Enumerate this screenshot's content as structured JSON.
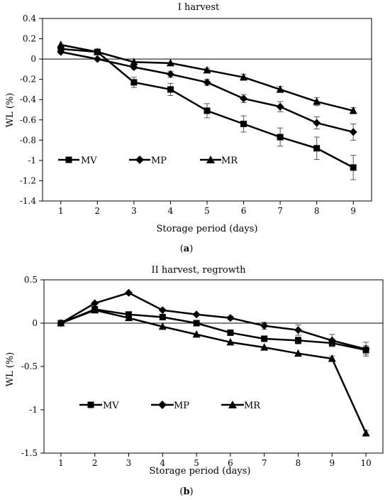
{
  "chart_data": [
    {
      "type": "line",
      "title": "I harvest",
      "xlabel": "Storage period (days)",
      "ylabel": "WL (%)",
      "caption_pre": "(",
      "caption_letter": "a",
      "caption_post": ")",
      "x": [
        1,
        2,
        3,
        4,
        5,
        6,
        7,
        8,
        9
      ],
      "xlim": [
        0.5,
        9.5
      ],
      "ylim": [
        -1.4,
        0.4
      ],
      "yticks": [
        0.4,
        0.2,
        0,
        -0.2,
        -0.4,
        -0.6,
        -0.8,
        -1,
        -1.2,
        -1.4
      ],
      "yticks_text": [
        "0.4",
        "0.2",
        "0",
        "-0.2",
        "-0.4",
        "-0.6",
        "-0.8",
        "-1",
        "-1.2",
        "-1.4"
      ],
      "grid": false,
      "legend_position": "lower-left",
      "series": [
        {
          "name": "MV",
          "marker": "square",
          "values": [
            0.1,
            0.07,
            -0.23,
            -0.3,
            -0.51,
            -0.64,
            -0.77,
            -0.88,
            -1.07
          ],
          "errors": [
            0.0,
            0.0,
            0.05,
            0.06,
            0.07,
            0.08,
            0.09,
            0.11,
            0.12
          ]
        },
        {
          "name": "MP",
          "marker": "diamond",
          "values": [
            0.07,
            0.0,
            -0.08,
            -0.15,
            -0.23,
            -0.39,
            -0.47,
            -0.63,
            -0.72
          ],
          "errors": [
            0.0,
            0.0,
            0.02,
            0.03,
            0.03,
            0.04,
            0.05,
            0.06,
            0.08
          ]
        },
        {
          "name": "MR",
          "marker": "triangle",
          "values": [
            0.14,
            0.07,
            -0.03,
            -0.04,
            -0.11,
            -0.18,
            -0.3,
            -0.42,
            -0.51
          ],
          "errors": [
            0.0,
            0.0,
            0.0,
            0.0,
            0.02,
            0.03,
            0.03,
            0.04,
            0.03
          ]
        }
      ]
    },
    {
      "type": "line",
      "title": "II harvest, regrowth",
      "xlabel": "Storage period (days)",
      "ylabel": "WL (%)",
      "caption_pre": "(",
      "caption_letter": "b",
      "caption_post": ")",
      "x": [
        1,
        2,
        3,
        4,
        5,
        6,
        7,
        8,
        9,
        10
      ],
      "xlim": [
        0.5,
        10.5
      ],
      "ylim": [
        -1.5,
        0.5
      ],
      "yticks": [
        0.5,
        0,
        -0.5,
        -1,
        -1.5
      ],
      "yticks_text": [
        "0.5",
        "0",
        "-0.5",
        "-1",
        "-1.5"
      ],
      "grid": false,
      "legend_position": "lower-left",
      "series": [
        {
          "name": "MV",
          "marker": "square",
          "values": [
            0.0,
            0.16,
            0.1,
            0.07,
            0.0,
            -0.11,
            -0.18,
            -0.2,
            -0.23,
            -0.31
          ],
          "errors": [
            0.0,
            0.0,
            0.0,
            0.0,
            0.0,
            0.02,
            0.03,
            0.04,
            0.04,
            0.05
          ]
        },
        {
          "name": "MP",
          "marker": "diamond",
          "values": [
            0.0,
            0.23,
            0.35,
            0.15,
            0.1,
            0.06,
            -0.03,
            -0.08,
            -0.2,
            -0.3
          ],
          "errors": [
            0.0,
            0.0,
            0.0,
            0.0,
            0.0,
            0.02,
            0.04,
            0.06,
            0.07,
            0.08
          ]
        },
        {
          "name": "MR",
          "marker": "triangle",
          "values": [
            0.0,
            0.15,
            0.06,
            -0.04,
            -0.13,
            -0.22,
            -0.28,
            -0.35,
            -0.41,
            -1.27
          ],
          "errors": [
            0.0,
            0.0,
            0.0,
            0.0,
            0.0,
            0.0,
            0.0,
            0.0,
            0.03,
            0.03
          ]
        }
      ]
    }
  ]
}
